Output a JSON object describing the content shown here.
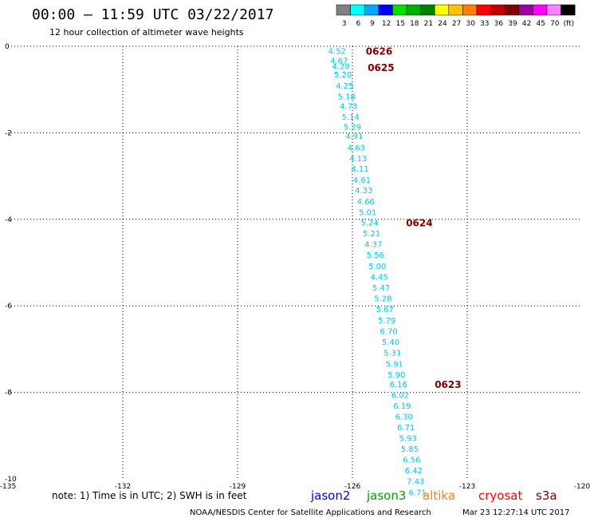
{
  "header": {
    "title": "00:00 – 11:59 UTC 03/22/2017",
    "subtitle": "12 hour collection of altimeter wave heights"
  },
  "colorbar": {
    "colors": [
      "#808080",
      "#00ffff",
      "#00a8ff",
      "#0000ff",
      "#00e000",
      "#00b000",
      "#008000",
      "#ffff00",
      "#ffc000",
      "#ff8000",
      "#ff0000",
      "#c00000",
      "#800000",
      "#9f009f",
      "#ff00ff",
      "#ff80ff",
      "#000000"
    ],
    "labels": [
      "3",
      "6",
      "9",
      "12",
      "15",
      "18",
      "21",
      "24",
      "27",
      "30",
      "33",
      "36",
      "39",
      "42",
      "45",
      "70",
      "(ft)"
    ]
  },
  "chart_data": {
    "type": "scatter",
    "xlim": [
      -135,
      -120
    ],
    "ylim": [
      -10,
      0
    ],
    "xticks": [
      "-135",
      "-132",
      "-129",
      "-126",
      "-123",
      "-120"
    ],
    "yticks": [
      "0",
      "-2",
      "-4",
      "-6",
      "-8",
      "-10"
    ],
    "grid": true,
    "points": [
      {
        "x": -126.4,
        "y": -0.1,
        "v": "4.52"
      },
      {
        "x": -126.35,
        "y": -0.32,
        "v": "4.67"
      },
      {
        "x": -126.3,
        "y": -0.45,
        "v": "4.28"
      },
      {
        "x": -126.25,
        "y": -0.65,
        "v": "5.20"
      },
      {
        "x": -126.2,
        "y": -0.9,
        "v": "4.25"
      },
      {
        "x": -126.15,
        "y": -1.15,
        "v": "5.18"
      },
      {
        "x": -126.1,
        "y": -1.37,
        "v": "4.73"
      },
      {
        "x": -126.05,
        "y": -1.62,
        "v": "5.14"
      },
      {
        "x": -126.0,
        "y": -1.85,
        "v": "5.29"
      },
      {
        "x": -125.95,
        "y": -2.07,
        "v": "4.91"
      },
      {
        "x": -125.9,
        "y": -2.33,
        "v": "4.63"
      },
      {
        "x": -125.85,
        "y": -2.58,
        "v": "4.13"
      },
      {
        "x": -125.8,
        "y": -2.82,
        "v": "4.11"
      },
      {
        "x": -125.75,
        "y": -3.08,
        "v": "4.61"
      },
      {
        "x": -125.7,
        "y": -3.32,
        "v": "4.33"
      },
      {
        "x": -125.65,
        "y": -3.58,
        "v": "4.66"
      },
      {
        "x": -125.6,
        "y": -3.83,
        "v": "5.01"
      },
      {
        "x": -125.55,
        "y": -4.07,
        "v": "5.24"
      },
      {
        "x": -125.5,
        "y": -4.32,
        "v": "5.21"
      },
      {
        "x": -125.45,
        "y": -4.57,
        "v": "4.37"
      },
      {
        "x": -125.4,
        "y": -4.82,
        "v": "5.56"
      },
      {
        "x": -125.35,
        "y": -5.07,
        "v": "5.00"
      },
      {
        "x": -125.3,
        "y": -5.32,
        "v": "4.45"
      },
      {
        "x": -125.25,
        "y": -5.57,
        "v": "5.47"
      },
      {
        "x": -125.2,
        "y": -5.82,
        "v": "5.28"
      },
      {
        "x": -125.15,
        "y": -6.07,
        "v": "5.67"
      },
      {
        "x": -125.1,
        "y": -6.33,
        "v": "5.79"
      },
      {
        "x": -125.05,
        "y": -6.58,
        "v": "6.70"
      },
      {
        "x": -125.0,
        "y": -6.83,
        "v": "5.40"
      },
      {
        "x": -124.95,
        "y": -7.08,
        "v": "5.31"
      },
      {
        "x": -124.9,
        "y": -7.33,
        "v": "5.91"
      },
      {
        "x": -124.85,
        "y": -7.58,
        "v": "5.90"
      },
      {
        "x": -124.8,
        "y": -7.8,
        "v": "6.16"
      },
      {
        "x": -124.75,
        "y": -8.05,
        "v": "6.02"
      },
      {
        "x": -124.7,
        "y": -8.3,
        "v": "6.19"
      },
      {
        "x": -124.65,
        "y": -8.55,
        "v": "6.30"
      },
      {
        "x": -124.6,
        "y": -8.8,
        "v": "6.71"
      },
      {
        "x": -124.55,
        "y": -9.05,
        "v": "5.93"
      },
      {
        "x": -124.5,
        "y": -9.3,
        "v": "5.85"
      },
      {
        "x": -124.45,
        "y": -9.55,
        "v": "6.56"
      },
      {
        "x": -124.4,
        "y": -9.8,
        "v": "6.42"
      },
      {
        "x": -124.35,
        "y": -10.05,
        "v": "7.43"
      },
      {
        "x": -124.3,
        "y": -10.3,
        "v": "6.71"
      }
    ],
    "time_labels": [
      {
        "x": -125.65,
        "y": -0.1,
        "text": "0626"
      },
      {
        "x": -125.6,
        "y": -0.48,
        "text": "0625"
      },
      {
        "x": -124.6,
        "y": -4.07,
        "text": "0624"
      },
      {
        "x": -123.85,
        "y": -7.8,
        "text": "0623"
      }
    ],
    "point_color": "#00c8e8",
    "time_label_color": "#800000"
  },
  "footer": {
    "note": "note: 1) Time is in UTC; 2) SWH is in feet",
    "missions": [
      {
        "name": "jason2",
        "color": "#0000ff"
      },
      {
        "name": "jason3",
        "color": "#00a000"
      },
      {
        "name": "altika",
        "color": "#ff8000"
      },
      {
        "name": "cryosat",
        "color": "#ff0000"
      },
      {
        "name": "s3a",
        "color": "#800000"
      }
    ],
    "credit": "NOAA/NESDIS Center for Satellite Applications and Research",
    "timestamp": "Mar 23 12:27:14 UTC 2017"
  }
}
